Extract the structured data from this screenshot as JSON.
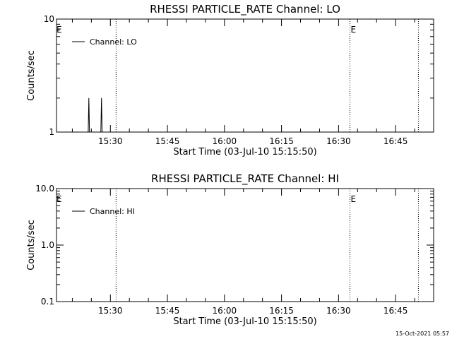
{
  "figure": {
    "footer_timestamp": "15-Oct-2021 05:57"
  },
  "chart_data": [
    {
      "type": "line",
      "title": "RHESSI PARTICLE_RATE Channel: LO",
      "xlabel": "Start Time (03-Jul-10 15:15:50)",
      "ylabel": "Counts/sec",
      "yscale": "log",
      "ylim": [
        1,
        10
      ],
      "y_ticks": [
        {
          "value": 1,
          "label": "1"
        },
        {
          "value": 10,
          "label": "10"
        }
      ],
      "xlim": [
        "15:15:50",
        "16:55:00"
      ],
      "x_ticks": [
        "15:30",
        "15:45",
        "16:00",
        "16:15",
        "16:30",
        "16:45"
      ],
      "legend": {
        "entries": [
          "Channel: LO"
        ],
        "position": "top-left"
      },
      "grid": false,
      "series": [
        {
          "name": "Channel: LO",
          "color": "#000000",
          "points": [
            {
              "t": "15:24:10",
              "y": 1
            },
            {
              "t": "15:24:20",
              "y": 2
            },
            {
              "t": "15:24:30",
              "y": 1
            },
            {
              "t": "15:27:30",
              "y": 1
            },
            {
              "t": "15:27:40",
              "y": 2
            },
            {
              "t": "15:27:50",
              "y": 1
            }
          ]
        }
      ],
      "event_lines": [
        {
          "t": "15:31:30",
          "marker": ""
        },
        {
          "t": "16:33:00",
          "marker": "E"
        },
        {
          "t": "16:51:00",
          "marker": ""
        }
      ],
      "edge_markers": [
        {
          "position": "left",
          "text": "E"
        }
      ]
    },
    {
      "type": "line",
      "title": "RHESSI PARTICLE_RATE Channel: HI",
      "xlabel": "Start Time (03-Jul-10 15:15:50)",
      "ylabel": "Counts/sec",
      "yscale": "log",
      "ylim": [
        0.1,
        10
      ],
      "y_ticks": [
        {
          "value": 0.1,
          "label": "0.1"
        },
        {
          "value": 1,
          "label": "1.0"
        },
        {
          "value": 10,
          "label": "10.0"
        }
      ],
      "xlim": [
        "15:15:50",
        "16:55:00"
      ],
      "x_ticks": [
        "15:30",
        "15:45",
        "16:00",
        "16:15",
        "16:30",
        "16:45"
      ],
      "legend": {
        "entries": [
          "Channel: HI"
        ],
        "position": "top-left"
      },
      "grid": false,
      "series": [
        {
          "name": "Channel: HI",
          "color": "#000000",
          "points": []
        }
      ],
      "event_lines": [
        {
          "t": "15:31:30",
          "marker": ""
        },
        {
          "t": "16:33:00",
          "marker": "E"
        },
        {
          "t": "16:51:00",
          "marker": ""
        }
      ],
      "edge_markers": [
        {
          "position": "left",
          "text": "E"
        }
      ]
    }
  ]
}
